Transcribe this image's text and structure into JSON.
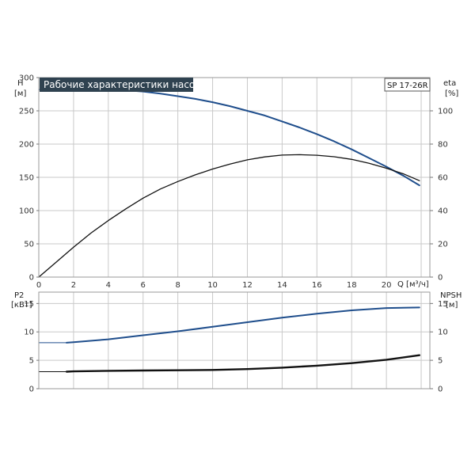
{
  "chart_data": [
    {
      "type": "line",
      "title": "Рабочие характеристики насоса",
      "model": "SP 17-26R",
      "xlabel": "Q [м³/ч]",
      "ylabel_left": [
        "H",
        "[м]"
      ],
      "ylabel_right": [
        "eta",
        "[%]"
      ],
      "xlim": [
        0,
        22.5
      ],
      "ylim_left": [
        0,
        300
      ],
      "ylim_right": [
        0,
        120
      ],
      "x_ticks": [
        "0",
        "2",
        "4",
        "6",
        "8",
        "10",
        "12",
        "14",
        "16",
        "18",
        "20"
      ],
      "y_ticks_left": [
        "0",
        "50",
        "100",
        "150",
        "200",
        "250",
        "300"
      ],
      "y_ticks_right": [
        "0",
        "20",
        "40",
        "60",
        "80",
        "100"
      ],
      "grid": true,
      "series": [
        {
          "axis": "left",
          "color": "#1f4e8c",
          "x": [
            1.6,
            2,
            3,
            4,
            5,
            6,
            7,
            8,
            9,
            10,
            11,
            12,
            13,
            14,
            15,
            16,
            17,
            18,
            19,
            20,
            21,
            21.9
          ],
          "y": [
            282,
            282,
            282.5,
            282,
            281,
            279,
            276,
            272,
            268,
            263,
            257,
            250,
            243,
            234,
            225,
            215,
            204,
            192,
            179,
            166,
            152,
            138
          ]
        },
        {
          "axis": "left",
          "color": "#1f4e8c",
          "style": "thin",
          "x": [
            0,
            1.6
          ],
          "y": [
            282,
            282
          ]
        },
        {
          "axis": "right",
          "color": "#111111",
          "x": [
            0,
            1,
            2,
            3,
            4,
            5,
            6,
            7,
            8,
            9,
            10,
            11,
            12,
            13,
            14,
            15,
            16,
            17,
            18,
            19,
            20,
            21,
            21.9
          ],
          "y": [
            0,
            9,
            18,
            26.5,
            34,
            41,
            47.5,
            53,
            57.5,
            61.5,
            65,
            68,
            70.5,
            72.3,
            73.4,
            73.6,
            73.3,
            72.4,
            70.8,
            68.5,
            65.5,
            62,
            58
          ]
        }
      ]
    },
    {
      "type": "line",
      "ylabel_left": [
        "P2",
        "[кВт]"
      ],
      "ylabel_right": [
        "NPSH",
        "[м]"
      ],
      "xlim": [
        0,
        22.5
      ],
      "ylim_left": [
        0,
        17
      ],
      "ylim_right": [
        0,
        17
      ],
      "y_ticks_left": [
        "0",
        "5",
        "10",
        "15"
      ],
      "y_ticks_right": [
        "0",
        "5",
        "10",
        "15"
      ],
      "grid": true,
      "series": [
        {
          "axis": "left",
          "color": "#1f4e8c",
          "x": [
            1.6,
            2,
            4,
            6,
            8,
            10,
            12,
            14,
            16,
            18,
            20,
            21.9
          ],
          "y": [
            8.1,
            8.2,
            8.7,
            9.4,
            10.1,
            10.9,
            11.7,
            12.5,
            13.2,
            13.8,
            14.2,
            14.3
          ]
        },
        {
          "axis": "left",
          "color": "#1f4e8c",
          "style": "thin",
          "x": [
            0,
            1.6
          ],
          "y": [
            8.1,
            8.1
          ]
        },
        {
          "axis": "right",
          "color": "#111111",
          "x": [
            1.6,
            2,
            4,
            6,
            8,
            10,
            12,
            14,
            16,
            18,
            20,
            21.9
          ],
          "y": [
            3.0,
            3.05,
            3.15,
            3.2,
            3.25,
            3.3,
            3.45,
            3.7,
            4.05,
            4.5,
            5.1,
            5.9
          ]
        },
        {
          "axis": "right",
          "color": "#111111",
          "style": "thin",
          "x": [
            0,
            1.6
          ],
          "y": [
            3.0,
            3.0
          ]
        }
      ]
    }
  ]
}
